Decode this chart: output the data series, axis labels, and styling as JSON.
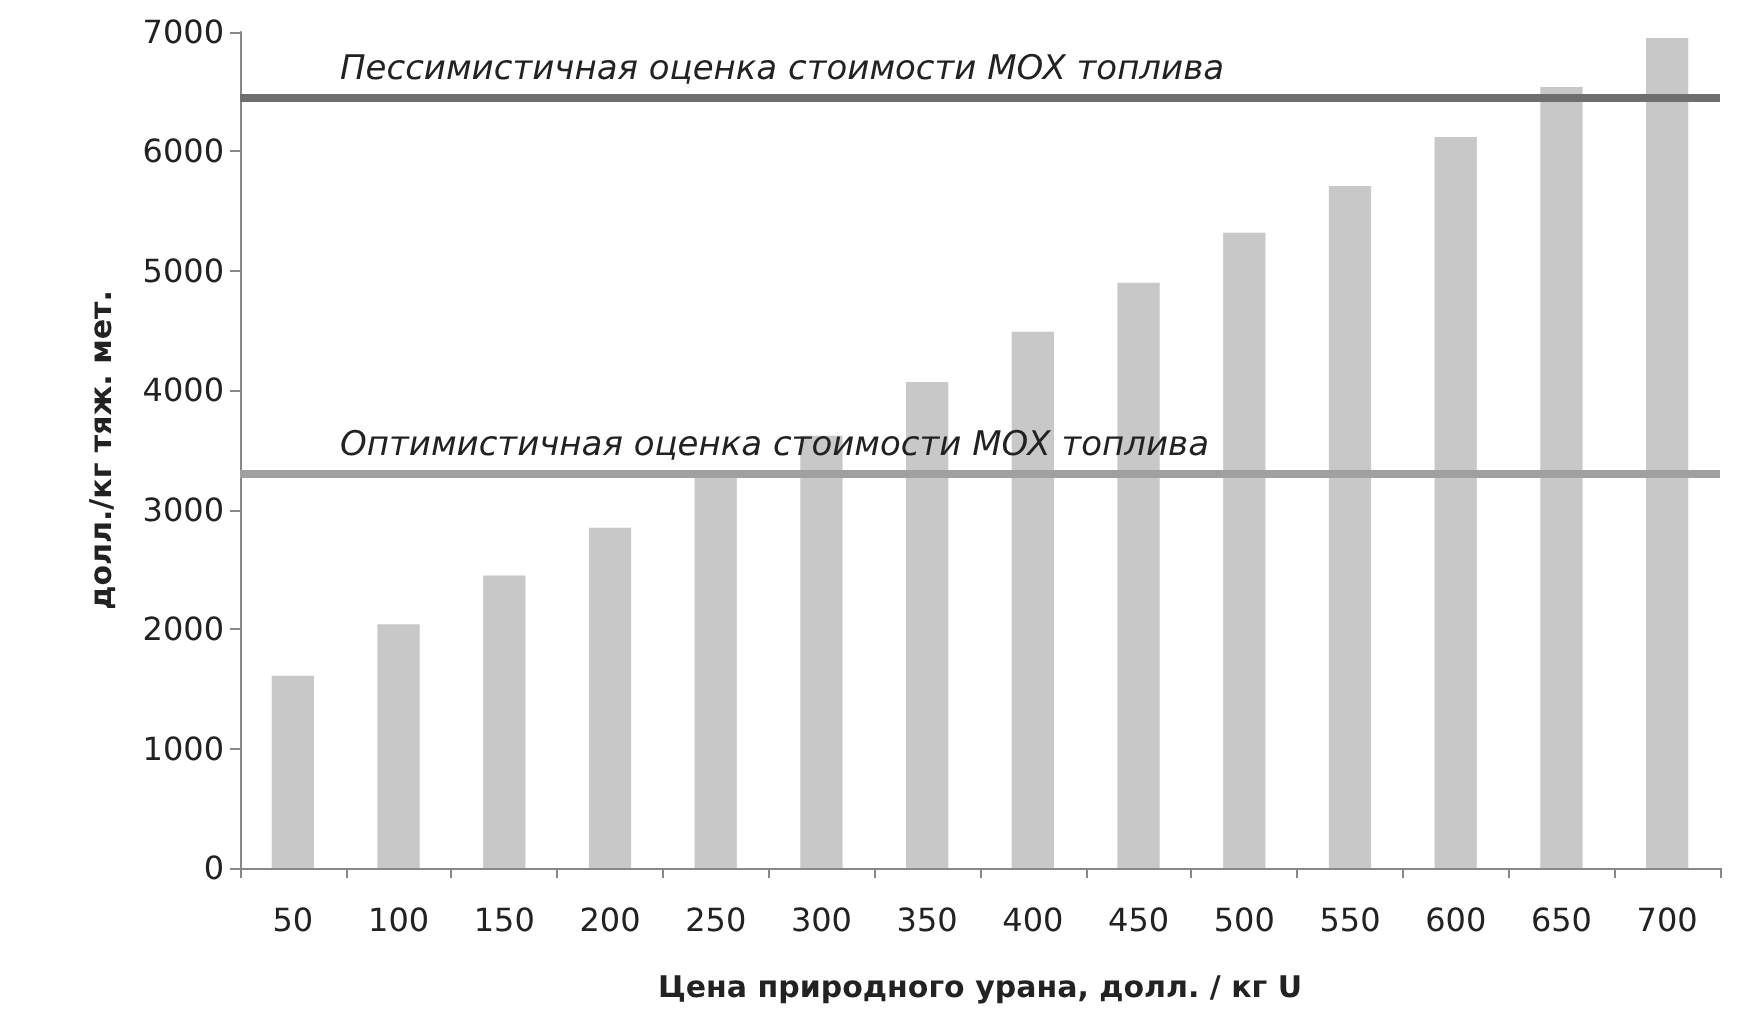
{
  "chart_data": {
    "type": "bar",
    "xlabel": "Цена природного урана, долл. / кг U",
    "ylabel": "долл./кг тяж. мет.",
    "categories": [
      "50",
      "100",
      "150",
      "200",
      "250",
      "300",
      "350",
      "400",
      "450",
      "500",
      "550",
      "600",
      "650",
      "700"
    ],
    "values": [
      1610,
      2040,
      2450,
      2850,
      3280,
      3620,
      4070,
      4490,
      4900,
      5320,
      5710,
      6120,
      6540,
      6950
    ],
    "color": "#c8c8c8",
    "ylim": [
      0,
      7000
    ],
    "yticks": [
      0,
      1000,
      2000,
      3000,
      4000,
      5000,
      6000,
      7000
    ],
    "grid": false,
    "ref_lines": [
      {
        "axis": "y",
        "value": 6450,
        "label": "Пессимистичная оценка стоимости MOX топлива",
        "color": "#6e6e6e"
      },
      {
        "axis": "y",
        "value": 3300,
        "label": "Оптимистичная оценка стоимости MOX топлива",
        "color": "#a0a0a0"
      }
    ]
  }
}
